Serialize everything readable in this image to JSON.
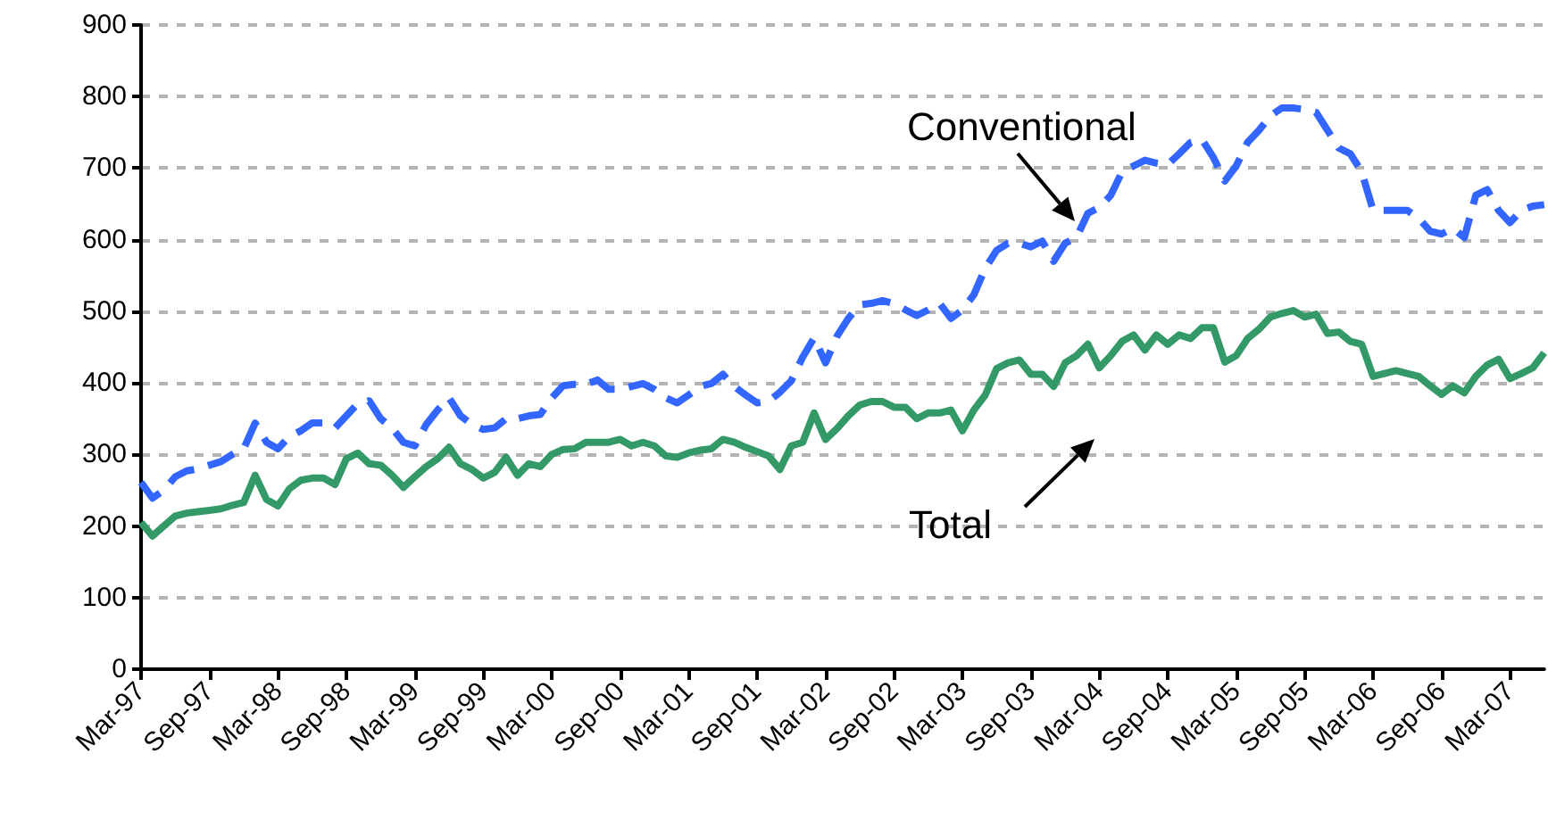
{
  "chart_data": {
    "type": "line",
    "categories": [
      "Mar-97",
      null,
      null,
      null,
      null,
      null,
      "Sep-97",
      null,
      null,
      null,
      null,
      null,
      "Mar-98",
      null,
      null,
      null,
      null,
      null,
      "Sep-98",
      null,
      null,
      null,
      null,
      null,
      "Mar-99",
      null,
      null,
      null,
      null,
      null,
      "Sep-99",
      null,
      null,
      null,
      null,
      null,
      "Mar-00",
      null,
      null,
      null,
      null,
      null,
      "Sep-00",
      null,
      null,
      null,
      null,
      null,
      "Mar-01",
      null,
      null,
      null,
      null,
      null,
      "Sep-01",
      null,
      null,
      null,
      null,
      null,
      "Mar-02",
      null,
      null,
      null,
      null,
      null,
      "Sep-02",
      null,
      null,
      null,
      null,
      null,
      "Mar-03",
      null,
      null,
      null,
      null,
      null,
      "Sep-03",
      null,
      null,
      null,
      null,
      null,
      "Mar-04",
      null,
      null,
      null,
      null,
      null,
      "Sep-04",
      null,
      null,
      null,
      null,
      null,
      "Mar-05",
      null,
      null,
      null,
      null,
      null,
      "Sep-05",
      null,
      null,
      null,
      null,
      null,
      "Mar-06",
      null,
      null,
      null,
      null,
      null,
      "Sep-06",
      null,
      null,
      null,
      null,
      null,
      "Mar-07",
      null,
      null,
      null
    ],
    "series": [
      {
        "color": "#3366ff",
        "line_style": "dashed",
        "values": [
          261,
          239,
          250,
          269,
          277,
          280,
          285,
          290,
          300,
          308,
          344,
          317,
          308,
          325,
          333,
          344,
          344,
          337,
          354,
          371,
          375,
          350,
          337,
          317,
          312,
          342,
          362,
          379,
          354,
          342,
          335,
          337,
          350,
          350,
          354,
          356,
          379,
          396,
          398,
          398,
          404,
          391,
          391,
          395,
          399,
          391,
          379,
          372,
          383,
          395,
          399,
          412,
          395,
          383,
          372,
          374,
          387,
          403,
          436,
          463,
          428,
          465,
          490,
          509,
          511,
          515,
          511,
          502,
          494,
          502,
          511,
          490,
          502,
          523,
          560,
          585,
          595,
          595,
          590,
          598,
          570,
          595,
          603,
          637,
          645,
          662,
          695,
          703,
          711,
          707,
          705,
          720,
          736,
          740,
          715,
          682,
          703,
          736,
          753,
          773,
          784,
          784,
          782,
          778,
          753,
          728,
          720,
          695,
          641,
          641,
          641,
          641,
          630,
          612,
          608,
          616,
          603,
          662,
          670,
          641,
          624,
          641,
          647,
          649
        ]
      },
      {
        "color": "#339966",
        "line_style": "solid",
        "values": [
          205,
          186,
          200,
          214,
          218,
          220,
          222,
          224,
          229,
          233,
          271,
          237,
          228,
          252,
          264,
          267,
          267,
          258,
          294,
          302,
          287,
          285,
          271,
          254,
          269,
          283,
          294,
          310,
          287,
          279,
          267,
          275,
          296,
          271,
          287,
          283,
          300,
          307,
          308,
          317,
          317,
          317,
          321,
          312,
          317,
          312,
          298,
          296,
          302,
          306,
          308,
          321,
          317,
          310,
          304,
          298,
          279,
          312,
          317,
          358,
          321,
          336,
          354,
          369,
          374,
          374,
          366,
          366,
          350,
          358,
          358,
          362,
          333,
          362,
          383,
          420,
          428,
          432,
          412,
          412,
          395,
          428,
          438,
          454,
          421,
          438,
          458,
          467,
          446,
          467,
          454,
          467,
          462,
          477,
          477,
          429,
          438,
          462,
          475,
          492,
          497,
          501,
          492,
          496,
          469,
          471,
          458,
          454,
          409,
          413,
          417,
          413,
          409,
          396,
          384,
          396,
          386,
          409,
          425,
          433,
          406,
          413,
          421,
          442
        ]
      }
    ],
    "annotations": [
      "Conventional",
      "Total"
    ],
    "ylim": [
      0,
      900
    ],
    "yticks": [
      0,
      100,
      200,
      300,
      400,
      500,
      600,
      700,
      800,
      900
    ],
    "grid": "y",
    "marker": "none"
  }
}
